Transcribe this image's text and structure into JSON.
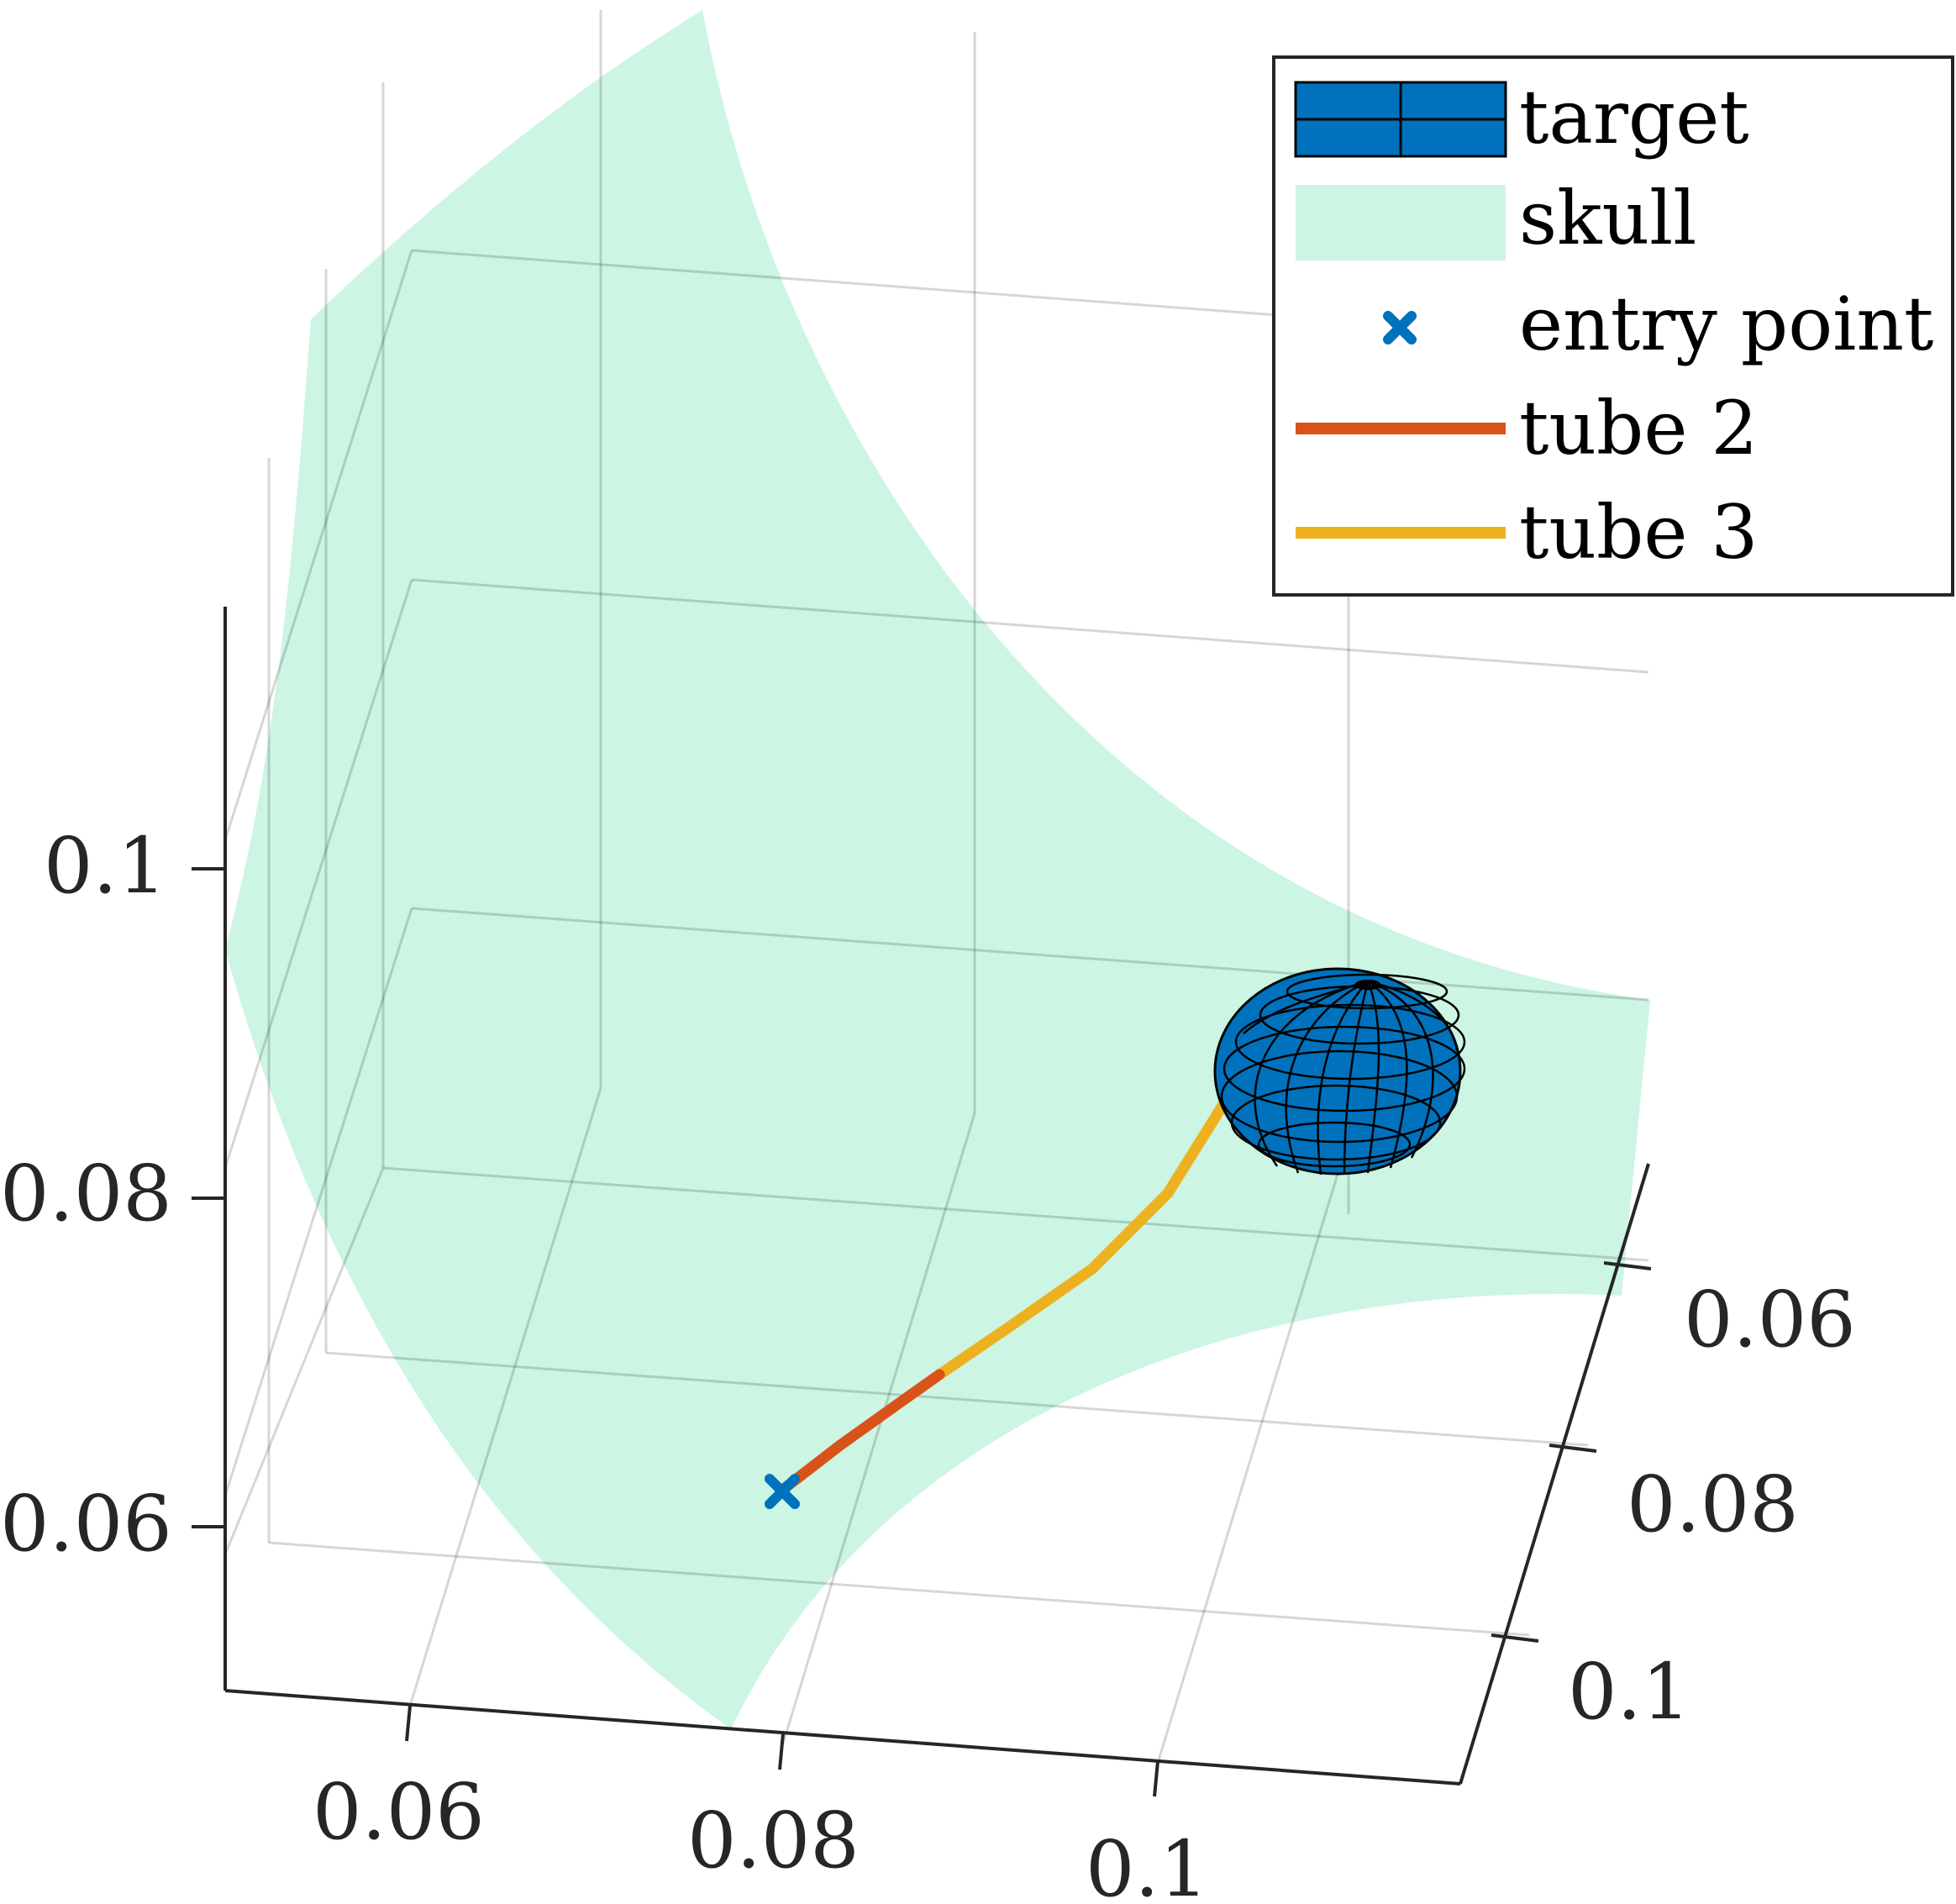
{
  "chart_data": {
    "type": "3d-line-surface",
    "title": "",
    "xlabel": "",
    "ylabel": "",
    "zlabel": "",
    "axes": {
      "x": {
        "ticks": [
          "0.06",
          "0.08",
          "0.1"
        ]
      },
      "y": {
        "ticks": [
          "0.06",
          "0.08",
          "0.1"
        ]
      },
      "z": {
        "ticks": [
          "0.1",
          "0.08",
          "0.06"
        ]
      }
    },
    "grid": true,
    "legend": {
      "placement": "top-right",
      "entries": [
        {
          "label": "target",
          "kind": "mesh",
          "color": "#0072BD"
        },
        {
          "label": "skull",
          "kind": "surface",
          "color": "#CCF5E3"
        },
        {
          "label": "entry point",
          "kind": "marker",
          "color": "#0072BD"
        },
        {
          "label": "tube 2",
          "kind": "line",
          "color": "#D95319"
        },
        {
          "label": "tube 3",
          "kind": "line",
          "color": "#EDB120"
        }
      ]
    },
    "series": [
      {
        "name": "tube 2",
        "color": "#D95319"
      },
      {
        "name": "tube 3",
        "color": "#EDB120"
      },
      {
        "name": "entry point",
        "color": "#0072BD"
      },
      {
        "name": "skull",
        "color": "#CCF5E3"
      },
      {
        "name": "target",
        "color": "#0072BD"
      }
    ]
  }
}
